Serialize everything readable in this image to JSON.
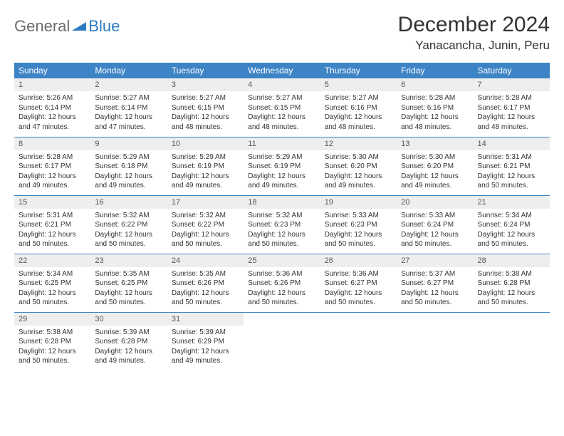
{
  "logo": {
    "part1": "General",
    "part2": "Blue"
  },
  "title": "December 2024",
  "location": "Yanacancha, Junin, Peru",
  "colors": {
    "header_bg": "#3d84c6",
    "header_text": "#ffffff",
    "daynum_bg": "#eeeeee",
    "border": "#3d84c6",
    "logo_gray": "#6b6b6b",
    "logo_blue": "#2d7bc0"
  },
  "weekdays": [
    "Sunday",
    "Monday",
    "Tuesday",
    "Wednesday",
    "Thursday",
    "Friday",
    "Saturday"
  ],
  "days": [
    {
      "n": "1",
      "sr": "Sunrise: 5:26 AM",
      "ss": "Sunset: 6:14 PM",
      "d1": "Daylight: 12 hours",
      "d2": "and 47 minutes."
    },
    {
      "n": "2",
      "sr": "Sunrise: 5:27 AM",
      "ss": "Sunset: 6:14 PM",
      "d1": "Daylight: 12 hours",
      "d2": "and 47 minutes."
    },
    {
      "n": "3",
      "sr": "Sunrise: 5:27 AM",
      "ss": "Sunset: 6:15 PM",
      "d1": "Daylight: 12 hours",
      "d2": "and 48 minutes."
    },
    {
      "n": "4",
      "sr": "Sunrise: 5:27 AM",
      "ss": "Sunset: 6:15 PM",
      "d1": "Daylight: 12 hours",
      "d2": "and 48 minutes."
    },
    {
      "n": "5",
      "sr": "Sunrise: 5:27 AM",
      "ss": "Sunset: 6:16 PM",
      "d1": "Daylight: 12 hours",
      "d2": "and 48 minutes."
    },
    {
      "n": "6",
      "sr": "Sunrise: 5:28 AM",
      "ss": "Sunset: 6:16 PM",
      "d1": "Daylight: 12 hours",
      "d2": "and 48 minutes."
    },
    {
      "n": "7",
      "sr": "Sunrise: 5:28 AM",
      "ss": "Sunset: 6:17 PM",
      "d1": "Daylight: 12 hours",
      "d2": "and 48 minutes."
    },
    {
      "n": "8",
      "sr": "Sunrise: 5:28 AM",
      "ss": "Sunset: 6:17 PM",
      "d1": "Daylight: 12 hours",
      "d2": "and 49 minutes."
    },
    {
      "n": "9",
      "sr": "Sunrise: 5:29 AM",
      "ss": "Sunset: 6:18 PM",
      "d1": "Daylight: 12 hours",
      "d2": "and 49 minutes."
    },
    {
      "n": "10",
      "sr": "Sunrise: 5:29 AM",
      "ss": "Sunset: 6:19 PM",
      "d1": "Daylight: 12 hours",
      "d2": "and 49 minutes."
    },
    {
      "n": "11",
      "sr": "Sunrise: 5:29 AM",
      "ss": "Sunset: 6:19 PM",
      "d1": "Daylight: 12 hours",
      "d2": "and 49 minutes."
    },
    {
      "n": "12",
      "sr": "Sunrise: 5:30 AM",
      "ss": "Sunset: 6:20 PM",
      "d1": "Daylight: 12 hours",
      "d2": "and 49 minutes."
    },
    {
      "n": "13",
      "sr": "Sunrise: 5:30 AM",
      "ss": "Sunset: 6:20 PM",
      "d1": "Daylight: 12 hours",
      "d2": "and 49 minutes."
    },
    {
      "n": "14",
      "sr": "Sunrise: 5:31 AM",
      "ss": "Sunset: 6:21 PM",
      "d1": "Daylight: 12 hours",
      "d2": "and 50 minutes."
    },
    {
      "n": "15",
      "sr": "Sunrise: 5:31 AM",
      "ss": "Sunset: 6:21 PM",
      "d1": "Daylight: 12 hours",
      "d2": "and 50 minutes."
    },
    {
      "n": "16",
      "sr": "Sunrise: 5:32 AM",
      "ss": "Sunset: 6:22 PM",
      "d1": "Daylight: 12 hours",
      "d2": "and 50 minutes."
    },
    {
      "n": "17",
      "sr": "Sunrise: 5:32 AM",
      "ss": "Sunset: 6:22 PM",
      "d1": "Daylight: 12 hours",
      "d2": "and 50 minutes."
    },
    {
      "n": "18",
      "sr": "Sunrise: 5:32 AM",
      "ss": "Sunset: 6:23 PM",
      "d1": "Daylight: 12 hours",
      "d2": "and 50 minutes."
    },
    {
      "n": "19",
      "sr": "Sunrise: 5:33 AM",
      "ss": "Sunset: 6:23 PM",
      "d1": "Daylight: 12 hours",
      "d2": "and 50 minutes."
    },
    {
      "n": "20",
      "sr": "Sunrise: 5:33 AM",
      "ss": "Sunset: 6:24 PM",
      "d1": "Daylight: 12 hours",
      "d2": "and 50 minutes."
    },
    {
      "n": "21",
      "sr": "Sunrise: 5:34 AM",
      "ss": "Sunset: 6:24 PM",
      "d1": "Daylight: 12 hours",
      "d2": "and 50 minutes."
    },
    {
      "n": "22",
      "sr": "Sunrise: 5:34 AM",
      "ss": "Sunset: 6:25 PM",
      "d1": "Daylight: 12 hours",
      "d2": "and 50 minutes."
    },
    {
      "n": "23",
      "sr": "Sunrise: 5:35 AM",
      "ss": "Sunset: 6:25 PM",
      "d1": "Daylight: 12 hours",
      "d2": "and 50 minutes."
    },
    {
      "n": "24",
      "sr": "Sunrise: 5:35 AM",
      "ss": "Sunset: 6:26 PM",
      "d1": "Daylight: 12 hours",
      "d2": "and 50 minutes."
    },
    {
      "n": "25",
      "sr": "Sunrise: 5:36 AM",
      "ss": "Sunset: 6:26 PM",
      "d1": "Daylight: 12 hours",
      "d2": "and 50 minutes."
    },
    {
      "n": "26",
      "sr": "Sunrise: 5:36 AM",
      "ss": "Sunset: 6:27 PM",
      "d1": "Daylight: 12 hours",
      "d2": "and 50 minutes."
    },
    {
      "n": "27",
      "sr": "Sunrise: 5:37 AM",
      "ss": "Sunset: 6:27 PM",
      "d1": "Daylight: 12 hours",
      "d2": "and 50 minutes."
    },
    {
      "n": "28",
      "sr": "Sunrise: 5:38 AM",
      "ss": "Sunset: 6:28 PM",
      "d1": "Daylight: 12 hours",
      "d2": "and 50 minutes."
    },
    {
      "n": "29",
      "sr": "Sunrise: 5:38 AM",
      "ss": "Sunset: 6:28 PM",
      "d1": "Daylight: 12 hours",
      "d2": "and 50 minutes."
    },
    {
      "n": "30",
      "sr": "Sunrise: 5:39 AM",
      "ss": "Sunset: 6:28 PM",
      "d1": "Daylight: 12 hours",
      "d2": "and 49 minutes."
    },
    {
      "n": "31",
      "sr": "Sunrise: 5:39 AM",
      "ss": "Sunset: 6:29 PM",
      "d1": "Daylight: 12 hours",
      "d2": "and 49 minutes."
    }
  ]
}
